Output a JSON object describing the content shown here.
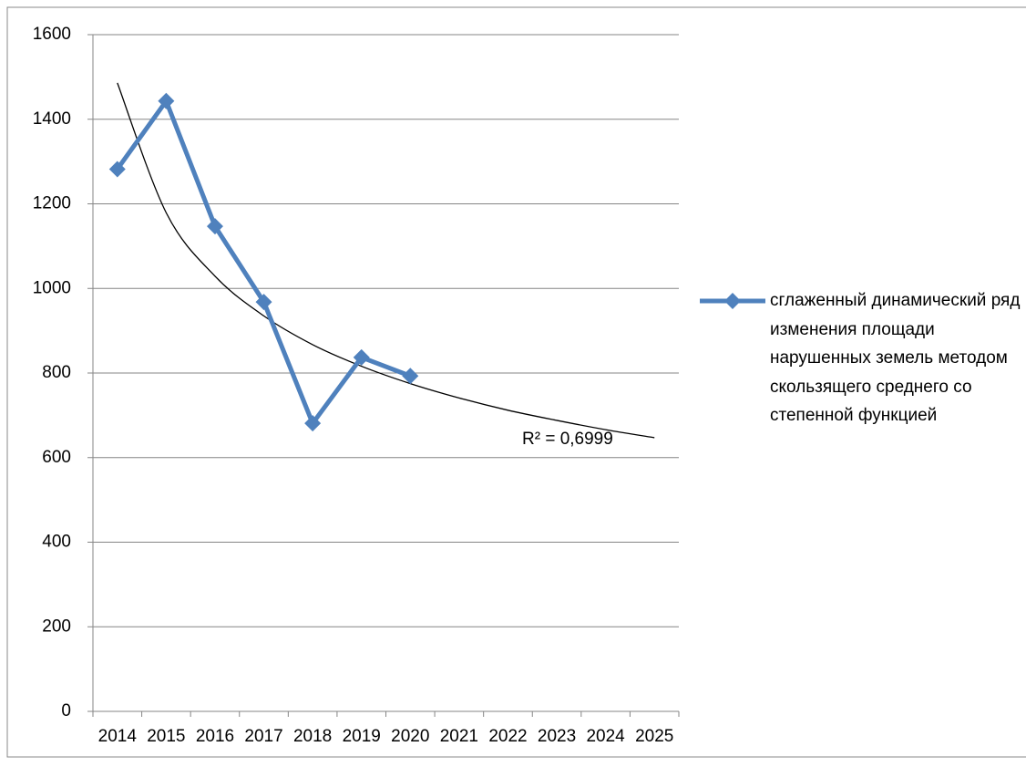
{
  "chart_data": {
    "type": "line",
    "categories": [
      "2014",
      "2015",
      "2016",
      "2017",
      "2018",
      "2019",
      "2020",
      "2021",
      "2022",
      "2023",
      "2024",
      "2025"
    ],
    "series": [
      {
        "name": "сглаженный динамический ряд изменения площади нарушенных земель методом скользящего среднего со степенной функцией",
        "color": "#4f81bd",
        "values": [
          1282,
          1443,
          1147,
          968,
          681,
          837,
          793,
          null,
          null,
          null,
          null,
          null
        ]
      }
    ],
    "trendline": {
      "type": "power",
      "color": "#000000",
      "label": "R² = 0,6999",
      "values": [
        1486,
        1179,
        1029,
        935,
        867,
        816,
        775,
        741,
        712,
        688,
        666,
        647
      ]
    },
    "ylim": [
      0,
      1600
    ],
    "yticks": [
      0,
      200,
      400,
      600,
      800,
      1000,
      1200,
      1400,
      1600
    ],
    "grid": true,
    "legend": "right"
  }
}
